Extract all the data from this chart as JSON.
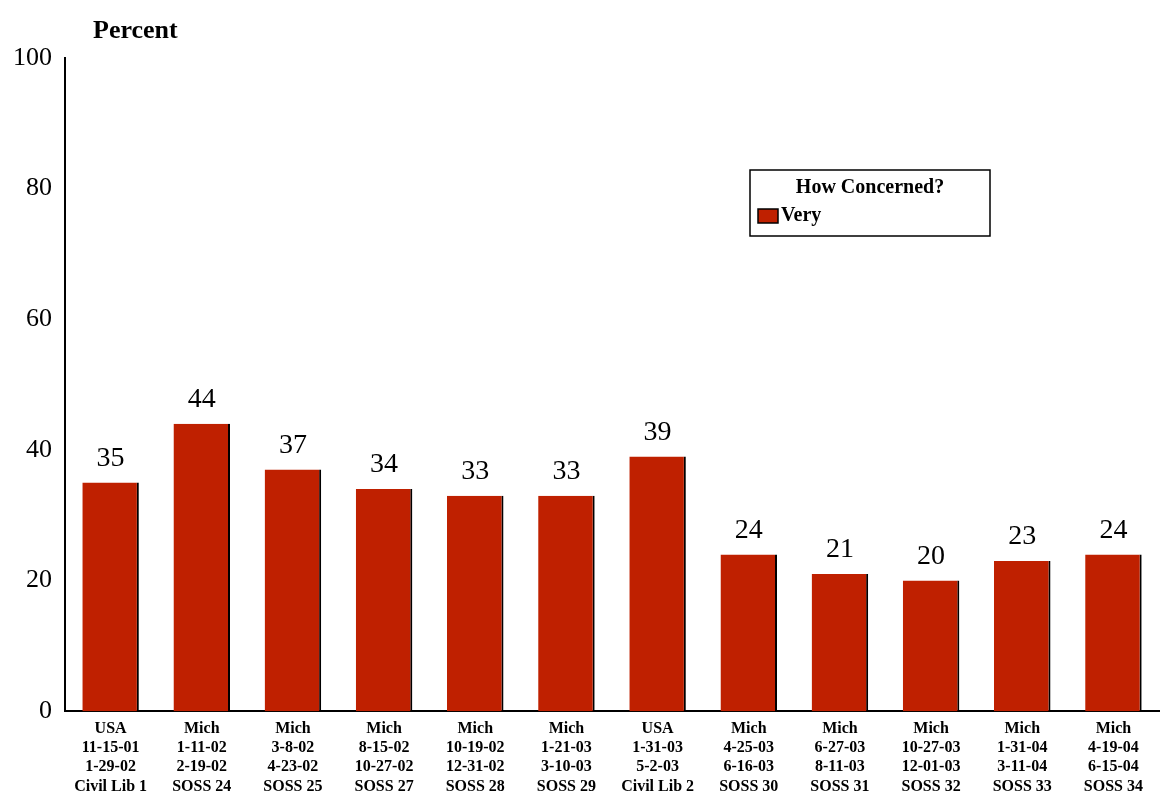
{
  "chart_data": {
    "type": "bar",
    "ylabel": "Percent",
    "legend_title": "How Concerned?",
    "legend": "top right",
    "grid": false,
    "data_labels": true,
    "categories": [
      "USA\n11-15-01\n1-29-02\nCivil Lib 1",
      "Mich\n1-11-02\n2-19-02\nSOSS 24",
      "Mich\n3-8-02\n4-23-02\nSOSS 25",
      "Mich\n8-15-02\n10-27-02\nSOSS 27",
      "Mich\n10-19-02\n12-31-02\nSOSS 28",
      "Mich\n1-21-03\n3-10-03\nSOSS 29",
      "USA\n1-31-03\n5-2-03\nCivil Lib 2",
      "Mich\n4-25-03\n6-16-03\nSOSS 30",
      "Mich\n6-27-03\n8-11-03\nSOSS 31",
      "Mich\n10-27-03\n12-01-03\nSOSS 32",
      "Mich\n1-31-04\n3-11-04\nSOSS 33",
      "Mich\n4-19-04\n6-15-04\nSOSS 34"
    ],
    "series": [
      {
        "name": "Very",
        "color": "#bf2000",
        "values": [
          35,
          44,
          37,
          34,
          33,
          33,
          39,
          24,
          21,
          20,
          23,
          24
        ]
      }
    ],
    "ylim": [
      0,
      100
    ],
    "yticks": [
      0,
      20,
      40,
      60,
      80,
      100
    ]
  }
}
